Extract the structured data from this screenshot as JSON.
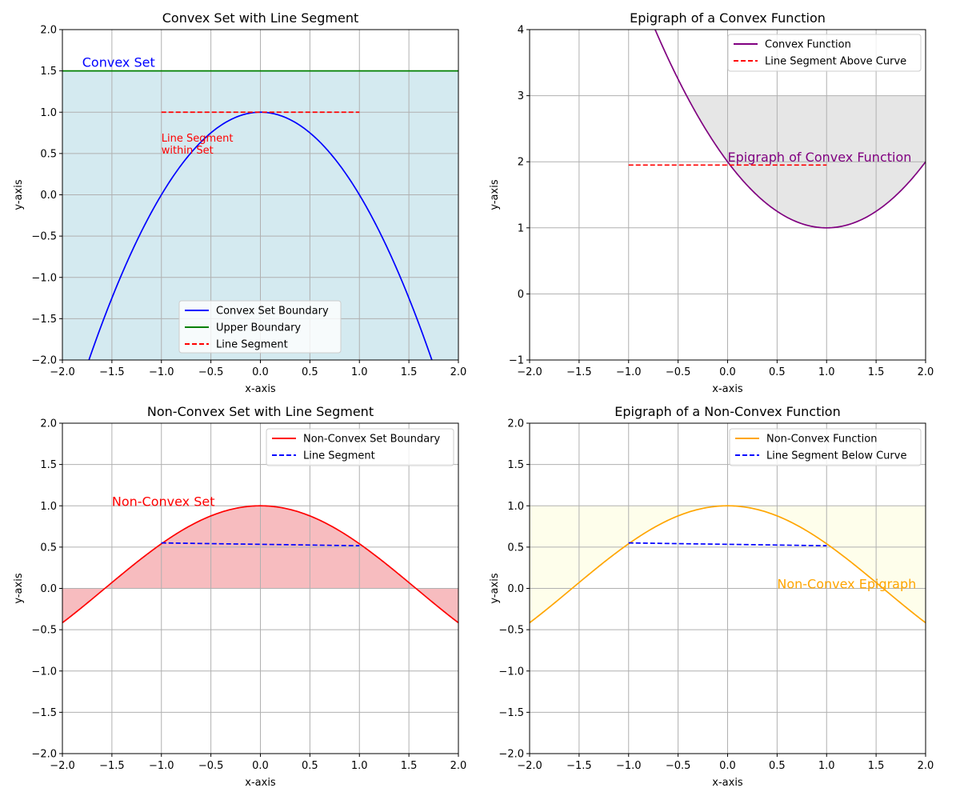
{
  "chart_data": [
    {
      "type": "line",
      "title": "Convex Set with Line Segment",
      "xlabel": "x-axis",
      "ylabel": "y-axis",
      "xlim": [
        -2,
        2
      ],
      "ylim": [
        -2,
        2
      ],
      "xticks": [
        -2,
        -1.5,
        -1,
        -0.5,
        0,
        0.5,
        1,
        1.5,
        2
      ],
      "xtick_labels": [
        "−2.0",
        "−1.5",
        "−1.0",
        "−0.5",
        "0.0",
        "0.5",
        "1.0",
        "1.5",
        "2.0"
      ],
      "yticks": [
        -2,
        -1.5,
        -1,
        -0.5,
        0,
        0.5,
        1,
        1.5,
        2
      ],
      "ytick_labels": [
        "−2.0",
        "−1.5",
        "−1.0",
        "−0.5",
        "0.0",
        "0.5",
        "1.0",
        "1.5",
        "2.0"
      ],
      "grid": true,
      "legend_position": "lower-center",
      "fill": {
        "kind": "between",
        "y_from": -2,
        "y_to": 1.5,
        "x": [
          -2,
          2
        ],
        "color": "#d4eaf0"
      },
      "series": [
        {
          "name": "Convex Set Boundary",
          "expr": "1 - x^2",
          "x_range": [
            -2,
            2
          ],
          "color": "#0000ff",
          "style": "solid"
        },
        {
          "name": "Upper Boundary",
          "points": [
            [
              -2,
              1.5
            ],
            [
              2,
              1.5
            ]
          ],
          "color": "#008000",
          "style": "solid"
        },
        {
          "name": "Line Segment",
          "points": [
            [
              -1,
              1
            ],
            [
              1,
              1
            ]
          ],
          "color": "#ff0000",
          "style": "dashed"
        }
      ],
      "annotations": [
        {
          "text": "Convex Set",
          "x": -1.8,
          "y": 1.55,
          "color": "#0000ff",
          "size": "large"
        },
        {
          "text": "Line Segment\nwithin Set",
          "x": -1,
          "y": 0.5,
          "color": "#ff0000",
          "size": "small"
        }
      ]
    },
    {
      "type": "line",
      "title": "Epigraph of a Convex Function",
      "xlabel": "x-axis",
      "ylabel": "y-axis",
      "xlim": [
        -2,
        2
      ],
      "ylim": [
        -1,
        4
      ],
      "xticks": [
        -2,
        -1.5,
        -1,
        -0.5,
        0,
        0.5,
        1,
        1.5,
        2
      ],
      "xtick_labels": [
        "−2.0",
        "−1.5",
        "−1.0",
        "−0.5",
        "0.0",
        "0.5",
        "1.0",
        "1.5",
        "2.0"
      ],
      "yticks": [
        -1,
        0,
        1,
        2,
        3,
        4
      ],
      "ytick_labels": [
        "−1",
        "0",
        "1",
        "2",
        "3",
        "4"
      ],
      "grid": true,
      "legend_position": "upper-right",
      "fill": {
        "kind": "above_curve",
        "expr": "(x - 1)^2 + 1",
        "y_to": 3,
        "x": [
          -2,
          2
        ],
        "color": "#e6e6e6"
      },
      "series": [
        {
          "name": "Convex Function",
          "expr": "(x - 1)^2 + 1",
          "x_range": [
            -2,
            2
          ],
          "color": "#800080",
          "style": "solid"
        },
        {
          "name": "Line Segment Above Curve",
          "points": [
            [
              -1,
              1.95
            ],
            [
              1,
              1.95
            ]
          ],
          "color": "#ff0000",
          "style": "dashed"
        }
      ],
      "annotations": [
        {
          "text": "Epigraph of Convex Function",
          "x": 0,
          "y": 2,
          "color": "#800080",
          "size": "large"
        }
      ]
    },
    {
      "type": "line",
      "title": "Non-Convex Set with Line Segment",
      "xlabel": "x-axis",
      "ylabel": "y-axis",
      "xlim": [
        -2,
        2
      ],
      "ylim": [
        -2,
        2
      ],
      "xticks": [
        -2,
        -1.5,
        -1,
        -0.5,
        0,
        0.5,
        1,
        1.5,
        2
      ],
      "xtick_labels": [
        "−2.0",
        "−1.5",
        "−1.0",
        "−0.5",
        "0.0",
        "0.5",
        "1.0",
        "1.5",
        "2.0"
      ],
      "yticks": [
        -2,
        -1.5,
        -1,
        -0.5,
        0,
        0.5,
        1,
        1.5,
        2
      ],
      "ytick_labels": [
        "−2.0",
        "−1.5",
        "−1.0",
        "−0.5",
        "0.0",
        "0.5",
        "1.0",
        "1.5",
        "2.0"
      ],
      "grid": true,
      "legend_position": "upper-right",
      "fill": {
        "kind": "between_curve_and_zero",
        "expr": "cos(x)",
        "x": [
          -2,
          2
        ],
        "color": "#f7bcbf"
      },
      "series": [
        {
          "name": "Non-Convex Set Boundary",
          "expr": "cos(x)",
          "x_range": [
            -2,
            2
          ],
          "color": "#ff0000",
          "style": "solid"
        },
        {
          "name": "Line Segment",
          "points": [
            [
              -1,
              0.5506
            ],
            [
              1,
              0.5166
            ]
          ],
          "color": "#0000ff",
          "style": "dashed"
        }
      ],
      "annotations": [
        {
          "text": "Non-Convex Set",
          "x": -1.5,
          "y": 1,
          "color": "#ff0000",
          "size": "large"
        }
      ]
    },
    {
      "type": "line",
      "title": "Epigraph of a Non-Convex Function",
      "xlabel": "x-axis",
      "ylabel": "y-axis",
      "xlim": [
        -2,
        2
      ],
      "ylim": [
        -2,
        2
      ],
      "xticks": [
        -2,
        -1.5,
        -1,
        -0.5,
        0,
        0.5,
        1,
        1.5,
        2
      ],
      "xtick_labels": [
        "−2.0",
        "−1.5",
        "−1.0",
        "−0.5",
        "0.0",
        "0.5",
        "1.0",
        "1.5",
        "2.0"
      ],
      "yticks": [
        -2,
        -1.5,
        -1,
        -0.5,
        0,
        0.5,
        1,
        1.5,
        2
      ],
      "ytick_labels": [
        "−2.0",
        "−1.5",
        "−1.0",
        "−0.5",
        "0.0",
        "0.5",
        "1.0",
        "1.5",
        "2.0"
      ],
      "grid": true,
      "legend_position": "upper-right",
      "fill": {
        "kind": "above_curve",
        "expr": "cos(x)",
        "y_to": 1,
        "x": [
          -2,
          2
        ],
        "color": "#fefeeb"
      },
      "series": [
        {
          "name": "Non-Convex Function",
          "expr": "cos(x)",
          "x_range": [
            -2,
            2
          ],
          "color": "#ffa500",
          "style": "solid"
        },
        {
          "name": "Line Segment Below Curve",
          "points": [
            [
              -1,
              0.5506
            ],
            [
              1,
              0.5166
            ]
          ],
          "color": "#0000ff",
          "style": "dashed"
        }
      ],
      "annotations": [
        {
          "text": "Non-Convex Epigraph",
          "x": 0.5,
          "y": 0,
          "color": "#ffa500",
          "size": "large"
        }
      ]
    }
  ]
}
